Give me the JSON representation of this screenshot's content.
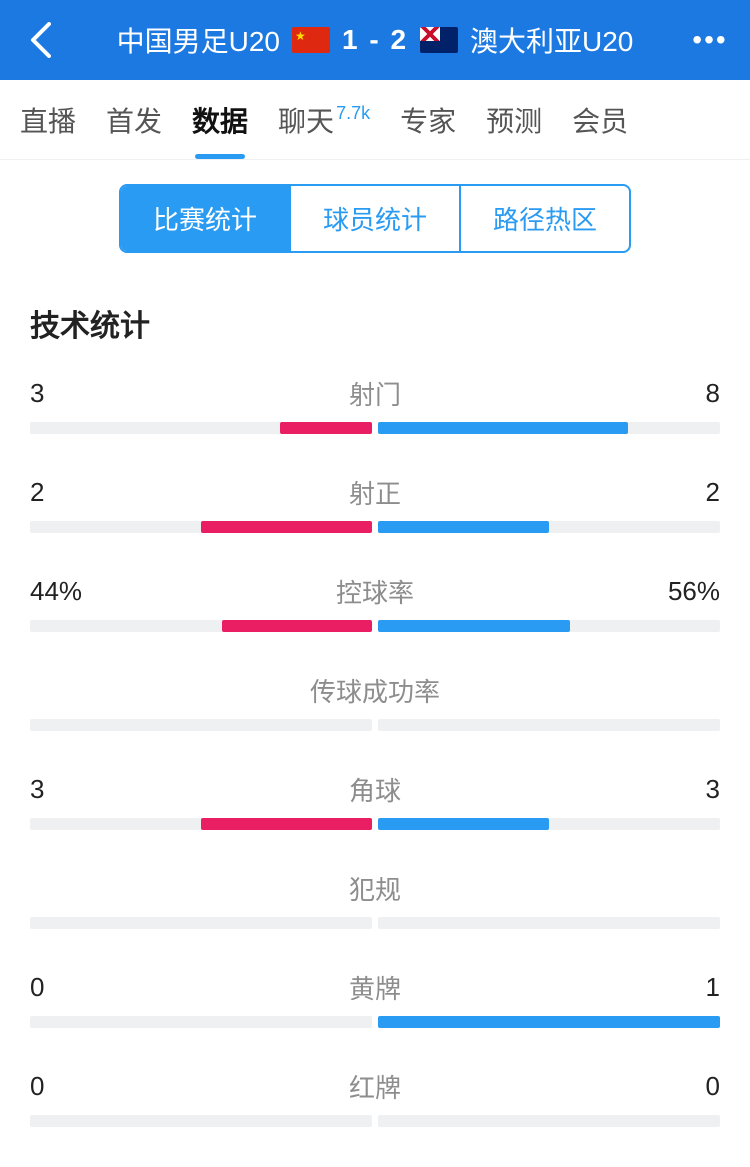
{
  "header": {
    "team_home": "中国男足U20",
    "team_away": "澳大利亚U20",
    "score_home": "1",
    "score_away": "2",
    "score_separator": " - "
  },
  "tabs": [
    {
      "label": "直播",
      "active": false,
      "badge": null
    },
    {
      "label": "首发",
      "active": false,
      "badge": null
    },
    {
      "label": "数据",
      "active": true,
      "badge": null
    },
    {
      "label": "聊天",
      "active": false,
      "badge": "7.7k"
    },
    {
      "label": "专家",
      "active": false,
      "badge": null
    },
    {
      "label": "预测",
      "active": false,
      "badge": null
    },
    {
      "label": "会员",
      "active": false,
      "badge": null
    }
  ],
  "sub_tabs": [
    {
      "label": "比赛统计",
      "active": true
    },
    {
      "label": "球员统计",
      "active": false
    },
    {
      "label": "路径热区",
      "active": false
    }
  ],
  "section_title": "技术统计",
  "colors": {
    "home_bar": "#e91e63",
    "away_bar": "#2a9bf2",
    "bar_bg": "#eef0f2",
    "header_bg": "#1d79e2",
    "accent": "#2a9bf2"
  },
  "stats": [
    {
      "name": "射门",
      "left_label": "3",
      "right_label": "8",
      "left_pct": 27,
      "right_pct": 73
    },
    {
      "name": "射正",
      "left_label": "2",
      "right_label": "2",
      "left_pct": 50,
      "right_pct": 50
    },
    {
      "name": "控球率",
      "left_label": "44%",
      "right_label": "56%",
      "left_pct": 44,
      "right_pct": 56
    },
    {
      "name": "传球成功率",
      "left_label": "",
      "right_label": "",
      "left_pct": 0,
      "right_pct": 0
    },
    {
      "name": "角球",
      "left_label": "3",
      "right_label": "3",
      "left_pct": 50,
      "right_pct": 50
    },
    {
      "name": "犯规",
      "left_label": "",
      "right_label": "",
      "left_pct": 0,
      "right_pct": 0
    },
    {
      "name": "黄牌",
      "left_label": "0",
      "right_label": "1",
      "left_pct": 0,
      "right_pct": 100
    },
    {
      "name": "红牌",
      "left_label": "0",
      "right_label": "0",
      "left_pct": 0,
      "right_pct": 0
    }
  ]
}
